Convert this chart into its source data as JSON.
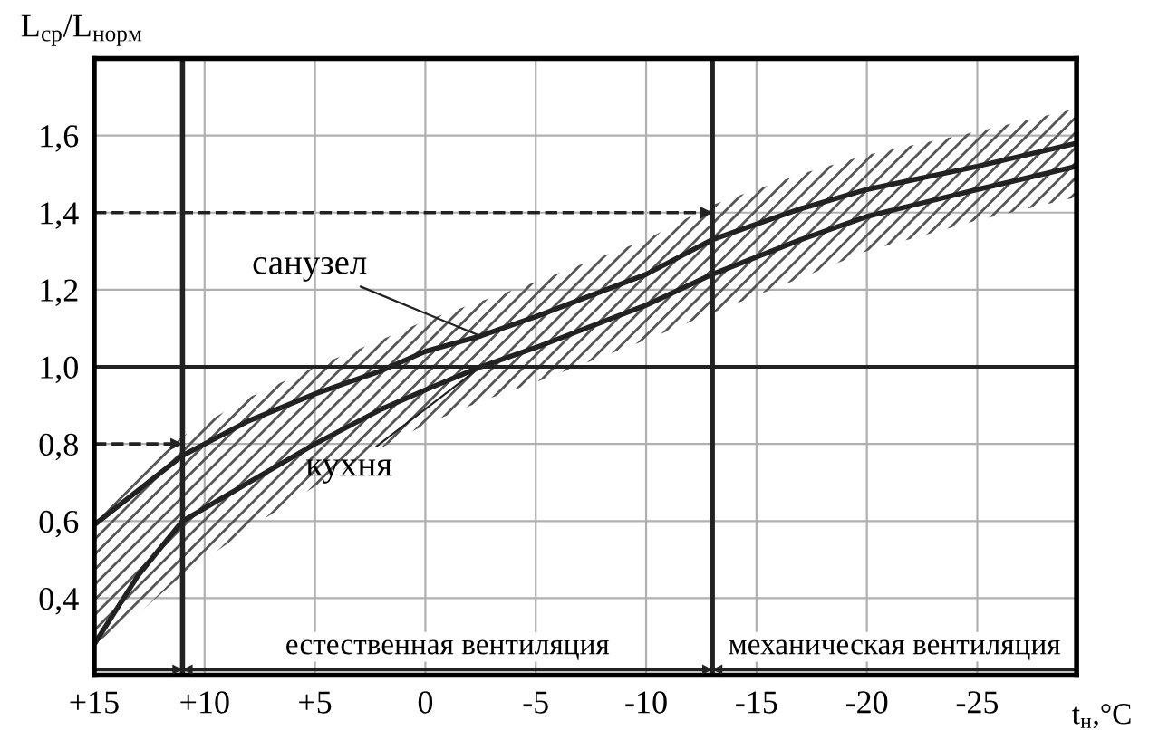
{
  "chart_data": {
    "type": "line",
    "xlabel": "t$_{н}$,°C",
    "ylabel": "L$_{ср}$/L$_{норм}$",
    "x": [
      15,
      13,
      11,
      8,
      5,
      2,
      0,
      -2.5,
      -5,
      -10,
      -13,
      -17,
      -20,
      -25,
      -29.5
    ],
    "series": [
      {
        "name": "санузел",
        "color": "#222222",
        "values": [
          0.59,
          0.68,
          0.77,
          0.86,
          0.93,
          0.99,
          1.04,
          1.08,
          1.13,
          1.24,
          1.33,
          1.41,
          1.46,
          1.52,
          1.58
        ],
        "upper": [
          0.59,
          0.72,
          0.82,
          0.92,
          1.0,
          1.07,
          1.12,
          1.17,
          1.22,
          1.33,
          1.42,
          1.5,
          1.55,
          1.61,
          1.67
        ],
        "lower": [
          0.28,
          0.36,
          0.46,
          0.58,
          0.69,
          0.79,
          0.85,
          0.91,
          0.96,
          1.07,
          1.14,
          1.23,
          1.3,
          1.38,
          1.44
        ]
      },
      {
        "name": "кухня",
        "color": "#222222",
        "values": [
          0.28,
          0.46,
          0.6,
          0.7,
          0.8,
          0.89,
          0.94,
          1.0,
          1.05,
          1.16,
          1.24,
          1.33,
          1.39,
          1.46,
          1.52
        ]
      },
      {
        "type": "line",
        "color": "#222222",
        "line_style": "dashed",
        "x": [
          15,
          11
        ],
        "values": [
          0.8,
          0.8
        ]
      },
      {
        "type": "line",
        "color": "#222222",
        "line_style": "dashed",
        "x": [
          15,
          -13
        ],
        "values": [
          1.4,
          1.4
        ]
      }
    ],
    "ref_lines": [
      {
        "axis": "y",
        "value": 1.0,
        "color": "#222222"
      },
      {
        "axis": "x",
        "value": 11,
        "color": "#222222"
      },
      {
        "axis": "x",
        "value": -13,
        "color": "#222222"
      },
      {
        "axis": "y",
        "value": 0.215,
        "color": "#222222"
      }
    ],
    "annotations": [
      "естественная вентиляция",
      "механическая вентиляция"
    ],
    "xlim": [
      15,
      -29.5
    ],
    "ylim": [
      0.2,
      1.8
    ],
    "xticks": [
      {
        "value": 15,
        "label": "+15"
      },
      {
        "value": 10,
        "label": "+10"
      },
      {
        "value": 5,
        "label": "+5"
      },
      0,
      -5,
      -10,
      -15,
      -20,
      -25
    ],
    "yticks": [
      {
        "value": 0.4,
        "label": "0,4"
      },
      {
        "value": 0.6,
        "label": "0,6"
      },
      {
        "value": 0.8,
        "label": "0,8"
      },
      {
        "value": 1.0,
        "label": "1,0"
      },
      {
        "value": 1.2,
        "label": "1,2"
      },
      {
        "value": 1.4,
        "label": "1,4"
      },
      {
        "value": 1.6,
        "label": "1,6"
      }
    ],
    "grid": true,
    "legend": false,
    "marker": "none",
    "line_style": "solid"
  }
}
